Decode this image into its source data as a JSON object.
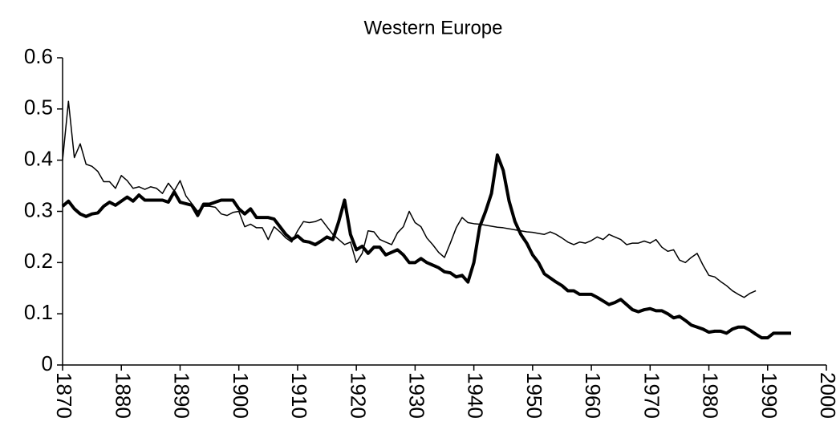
{
  "chart_data": {
    "type": "line",
    "title": "Western Europe",
    "x": [
      1870,
      1871,
      1872,
      1873,
      1874,
      1875,
      1876,
      1877,
      1878,
      1879,
      1880,
      1881,
      1882,
      1883,
      1884,
      1885,
      1886,
      1887,
      1888,
      1889,
      1890,
      1891,
      1892,
      1893,
      1894,
      1895,
      1896,
      1897,
      1898,
      1899,
      1900,
      1901,
      1902,
      1903,
      1904,
      1905,
      1906,
      1907,
      1908,
      1909,
      1910,
      1911,
      1912,
      1913,
      1914,
      1915,
      1916,
      1917,
      1918,
      1919,
      1920,
      1921,
      1922,
      1923,
      1924,
      1925,
      1926,
      1927,
      1928,
      1929,
      1930,
      1931,
      1932,
      1933,
      1934,
      1935,
      1936,
      1937,
      1938,
      1939,
      1940,
      1941,
      1942,
      1943,
      1944,
      1945,
      1946,
      1947,
      1948,
      1949,
      1950,
      1951,
      1952,
      1953,
      1954,
      1955,
      1956,
      1957,
      1958,
      1959,
      1960,
      1961,
      1962,
      1963,
      1964,
      1965,
      1966,
      1967,
      1968,
      1969,
      1970,
      1971,
      1972,
      1973,
      1974,
      1975,
      1976,
      1977,
      1978,
      1979,
      1980,
      1981,
      1982,
      1983,
      1984,
      1985,
      1986,
      1987,
      1988,
      1989,
      1990,
      1991,
      1992,
      1993,
      1994
    ],
    "series": [
      {
        "color": "#000000",
        "width": 4,
        "values": [
          0.31,
          0.32,
          0.305,
          0.295,
          0.29,
          0.295,
          0.297,
          0.31,
          0.318,
          0.312,
          0.32,
          0.328,
          0.32,
          0.332,
          0.322,
          0.322,
          0.322,
          0.322,
          0.318,
          0.338,
          0.318,
          0.315,
          0.312,
          0.292,
          0.314,
          0.314,
          0.318,
          0.322,
          0.322,
          0.322,
          0.305,
          0.295,
          0.305,
          0.288,
          0.288,
          0.288,
          0.285,
          0.27,
          0.255,
          0.245,
          0.252,
          0.242,
          0.24,
          0.235,
          0.242,
          0.25,
          0.245,
          0.28,
          0.322,
          0.255,
          0.225,
          0.232,
          0.218,
          0.23,
          0.23,
          0.215,
          0.22,
          0.225,
          0.215,
          0.2,
          0.2,
          0.208,
          0.2,
          0.195,
          0.19,
          0.182,
          0.18,
          0.172,
          0.175,
          0.162,
          0.2,
          0.27,
          0.3,
          0.335,
          0.41,
          0.38,
          0.32,
          0.28,
          0.255,
          0.238,
          0.215,
          0.2,
          0.178,
          0.17,
          0.162,
          0.155,
          0.145,
          0.145,
          0.138,
          0.138,
          0.138,
          0.132,
          0.125,
          0.118,
          0.122,
          0.128,
          0.118,
          0.108,
          0.104,
          0.108,
          0.11,
          0.106,
          0.106,
          0.1,
          0.092,
          0.095,
          0.087,
          0.078,
          0.074,
          0.07,
          0.064,
          0.066,
          0.066,
          0.062,
          0.07,
          0.074,
          0.074,
          0.068,
          0.06,
          0.053,
          0.053,
          0.062,
          0.062,
          0.062,
          0.062
        ]
      },
      {
        "color": "#000000",
        "width": 1.5,
        "values": [
          0.4,
          0.515,
          0.405,
          0.432,
          0.392,
          0.388,
          0.378,
          0.358,
          0.358,
          0.345,
          0.37,
          0.36,
          0.345,
          0.348,
          0.343,
          0.348,
          0.345,
          0.335,
          0.355,
          0.34,
          0.36,
          0.33,
          0.315,
          0.3,
          0.31,
          0.31,
          0.308,
          0.295,
          0.292,
          0.298,
          0.3,
          0.27,
          0.275,
          0.268,
          0.268,
          0.245,
          0.27,
          0.26,
          0.248,
          0.24,
          0.262,
          0.28,
          0.278,
          0.28,
          0.285,
          0.27,
          0.255,
          0.245,
          0.235,
          0.24,
          0.2,
          0.218,
          0.262,
          0.26,
          0.245,
          0.24,
          0.235,
          0.258,
          0.27,
          0.3,
          0.278,
          0.27,
          0.248,
          0.235,
          0.22,
          0.21,
          0.238,
          0.268,
          0.288,
          0.278,
          0.276,
          0.275,
          0.273,
          0.271,
          0.269,
          0.268,
          0.266,
          0.264,
          0.262,
          0.26,
          0.259,
          0.257,
          0.255,
          0.26,
          0.255,
          0.248,
          0.24,
          0.235,
          0.24,
          0.238,
          0.243,
          0.25,
          0.245,
          0.255,
          0.25,
          0.245,
          0.235,
          0.238,
          0.238,
          0.242,
          0.238,
          0.245,
          0.23,
          0.222,
          0.225,
          0.205,
          0.2,
          0.21,
          0.218,
          0.195,
          0.175,
          0.172,
          0.163,
          0.155,
          0.145,
          0.138,
          0.132,
          0.14,
          0.145,
          null,
          null,
          null,
          null,
          null,
          null
        ]
      }
    ],
    "xlim": [
      1870,
      2000
    ],
    "xticks": [
      1870,
      1880,
      1890,
      1900,
      1910,
      1920,
      1930,
      1940,
      1950,
      1960,
      1970,
      1980,
      1990,
      2000
    ],
    "ylim": [
      0,
      0.6
    ],
    "yticks": [
      0,
      0.1,
      0.2,
      0.3,
      0.4,
      0.5,
      0.6
    ],
    "grid": false
  }
}
